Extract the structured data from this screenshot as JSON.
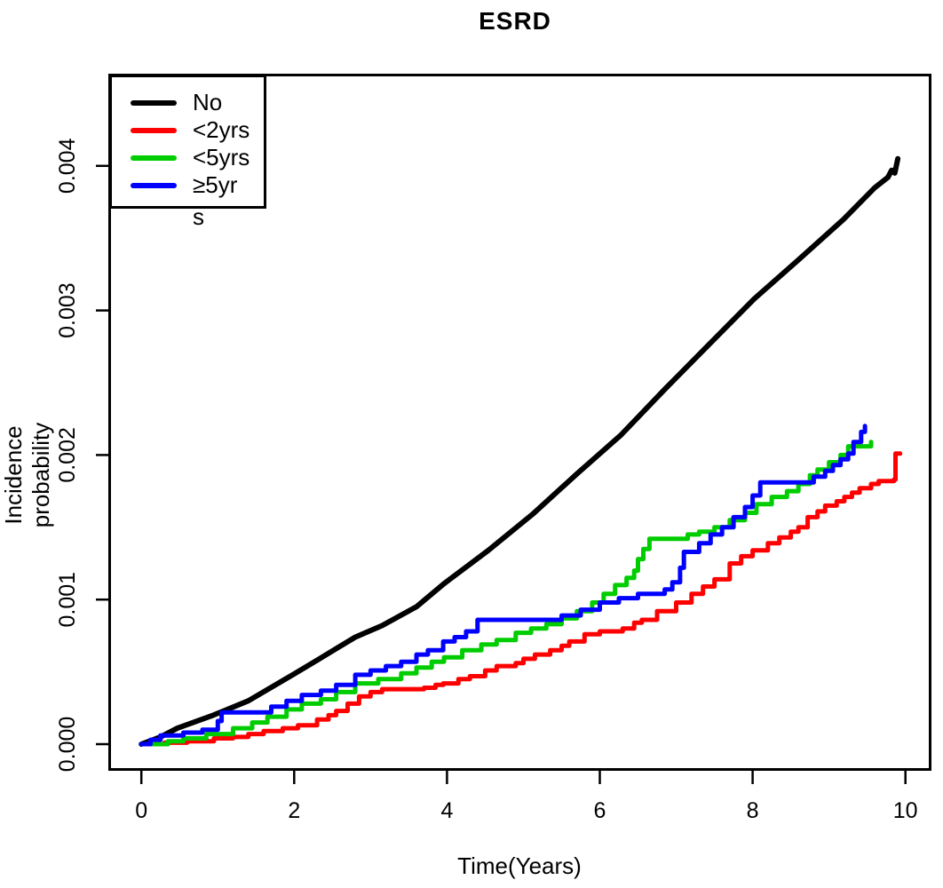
{
  "chart_data": {
    "type": "line",
    "title": "ESRD",
    "xlabel": "Time(Years)",
    "ylabel": "Incidence probability",
    "ylabel_lines": [
      "Incidence",
      "probability"
    ],
    "xlim": [
      0,
      10
    ],
    "ylim": [
      0,
      0.004
    ],
    "grid": false,
    "x_ticks": {
      "values": [
        0,
        2,
        4,
        6,
        8,
        10
      ],
      "labels": [
        "0",
        "2",
        "4",
        "6",
        "8",
        "10"
      ]
    },
    "y_ticks": {
      "values": [
        0,
        0.001,
        0.002,
        0.003,
        0.004
      ],
      "labels": [
        "0.000",
        "0.001",
        "0.002",
        "0.003",
        "0.004"
      ]
    },
    "legend": {
      "position": "top-left",
      "overflow_text": "s",
      "items": [
        {
          "id": "no",
          "label": "No",
          "display_label": "No",
          "color": "#000000"
        },
        {
          "id": "lt2yrs",
          "label": "<2yrs",
          "display_label": "<2yrs",
          "color": "#FF0000"
        },
        {
          "id": "lt5yrs",
          "label": "<5yrs",
          "display_label": "<5yrs",
          "color": "#00CD00"
        },
        {
          "id": "ge5yrs",
          "label": "≥5yrs",
          "display_label": "≥5yr",
          "color": "#0000FF"
        }
      ]
    },
    "series": [
      {
        "id": "no",
        "name": "No",
        "color": "#000000",
        "interp": "linear",
        "width": 6,
        "points": [
          [
            0.0,
            0.0
          ],
          [
            0.25,
            5e-05
          ],
          [
            0.47,
            0.00011
          ],
          [
            0.94,
            0.0002
          ],
          [
            1.4,
            0.0003
          ],
          [
            1.98,
            0.00048
          ],
          [
            2.33,
            0.00059
          ],
          [
            2.8,
            0.00074
          ],
          [
            3.15,
            0.00082
          ],
          [
            3.6,
            0.00095
          ],
          [
            3.96,
            0.00111
          ],
          [
            4.54,
            0.00134
          ],
          [
            5.12,
            0.00159
          ],
          [
            5.7,
            0.00187
          ],
          [
            6.28,
            0.00214
          ],
          [
            6.86,
            0.00246
          ],
          [
            7.44,
            0.00277
          ],
          [
            8.02,
            0.00308
          ],
          [
            8.6,
            0.00335
          ],
          [
            9.19,
            0.00363
          ],
          [
            9.6,
            0.00385
          ],
          [
            9.77,
            0.00392
          ],
          [
            9.82,
            0.00397
          ],
          [
            9.86,
            0.00395
          ],
          [
            9.9,
            0.00405
          ]
        ]
      },
      {
        "id": "lt2yrs",
        "name": "<2yrs",
        "color": "#FF0000",
        "interp": "step",
        "width": 5,
        "points": [
          [
            0.07,
            0.0
          ],
          [
            0.3,
            1e-05
          ],
          [
            0.6,
            2e-05
          ],
          [
            0.95,
            4e-05
          ],
          [
            1.2,
            5e-05
          ],
          [
            1.4,
            7e-05
          ],
          [
            1.6,
            9e-05
          ],
          [
            1.85,
            0.00011
          ],
          [
            2.05,
            0.00013
          ],
          [
            2.3,
            0.00017
          ],
          [
            2.45,
            0.0002
          ],
          [
            2.55,
            0.00023
          ],
          [
            2.7,
            0.00028
          ],
          [
            2.85,
            0.00033
          ],
          [
            3.0,
            0.00036
          ],
          [
            3.15,
            0.00038
          ],
          [
            3.7,
            0.00039
          ],
          [
            3.85,
            0.00041
          ],
          [
            3.95,
            0.00042
          ],
          [
            4.15,
            0.00045
          ],
          [
            4.3,
            0.00047
          ],
          [
            4.5,
            0.00051
          ],
          [
            4.65,
            0.00054
          ],
          [
            4.9,
            0.00056
          ],
          [
            5.0,
            0.00059
          ],
          [
            5.15,
            0.00062
          ],
          [
            5.35,
            0.00065
          ],
          [
            5.5,
            0.00068
          ],
          [
            5.6,
            0.00071
          ],
          [
            5.8,
            0.00076
          ],
          [
            6.0,
            0.00078
          ],
          [
            6.3,
            0.0008
          ],
          [
            6.45,
            0.00084
          ],
          [
            6.55,
            0.00086
          ],
          [
            6.75,
            0.00092
          ],
          [
            7.0,
            0.00098
          ],
          [
            7.2,
            0.00104
          ],
          [
            7.35,
            0.00109
          ],
          [
            7.5,
            0.00114
          ],
          [
            7.7,
            0.00125
          ],
          [
            7.85,
            0.0013
          ],
          [
            8.0,
            0.00134
          ],
          [
            8.2,
            0.00139
          ],
          [
            8.35,
            0.00143
          ],
          [
            8.5,
            0.00147
          ],
          [
            8.6,
            0.0015
          ],
          [
            8.72,
            0.00157
          ],
          [
            8.85,
            0.00161
          ],
          [
            8.95,
            0.00165
          ],
          [
            9.1,
            0.00168
          ],
          [
            9.2,
            0.00171
          ],
          [
            9.3,
            0.00174
          ],
          [
            9.4,
            0.00177
          ],
          [
            9.55,
            0.0018
          ],
          [
            9.65,
            0.00182
          ],
          [
            9.85,
            0.00183
          ],
          [
            9.87,
            0.00201
          ],
          [
            9.93,
            0.00201
          ]
        ]
      },
      {
        "id": "lt5yrs",
        "name": "<5yrs",
        "color": "#00CD00",
        "interp": "step",
        "width": 5,
        "points": [
          [
            0.1,
            0.0
          ],
          [
            0.35,
            2e-05
          ],
          [
            0.55,
            4e-05
          ],
          [
            0.85,
            7e-05
          ],
          [
            1.2,
            0.00011
          ],
          [
            1.45,
            0.00015
          ],
          [
            1.65,
            0.00019
          ],
          [
            1.9,
            0.00024
          ],
          [
            2.1,
            0.00028
          ],
          [
            2.35,
            0.00031
          ],
          [
            2.55,
            0.00036
          ],
          [
            2.8,
            0.00042
          ],
          [
            3.1,
            0.00045
          ],
          [
            3.4,
            0.00049
          ],
          [
            3.6,
            0.00053
          ],
          [
            3.8,
            0.00057
          ],
          [
            3.96,
            0.0006
          ],
          [
            4.2,
            0.00065
          ],
          [
            4.45,
            0.00069
          ],
          [
            4.65,
            0.00072
          ],
          [
            4.9,
            0.00077
          ],
          [
            5.1,
            0.0008
          ],
          [
            5.3,
            0.00083
          ],
          [
            5.5,
            0.00087
          ],
          [
            5.7,
            0.00092
          ],
          [
            5.9,
            0.00098
          ],
          [
            6.05,
            0.00104
          ],
          [
            6.2,
            0.0011
          ],
          [
            6.35,
            0.00115
          ],
          [
            6.45,
            0.0012
          ],
          [
            6.5,
            0.00128
          ],
          [
            6.57,
            0.00135
          ],
          [
            6.65,
            0.00142
          ],
          [
            7.0,
            0.00142
          ],
          [
            7.15,
            0.00145
          ],
          [
            7.3,
            0.00147
          ],
          [
            7.5,
            0.0015
          ],
          [
            7.7,
            0.00155
          ],
          [
            7.9,
            0.0016
          ],
          [
            8.05,
            0.00166
          ],
          [
            8.25,
            0.00171
          ],
          [
            8.45,
            0.00175
          ],
          [
            8.6,
            0.0018
          ],
          [
            8.75,
            0.00186
          ],
          [
            8.85,
            0.0019
          ],
          [
            9.0,
            0.00195
          ],
          [
            9.15,
            0.002
          ],
          [
            9.25,
            0.00206
          ],
          [
            9.5,
            0.00206
          ],
          [
            9.55,
            0.00209
          ]
        ]
      },
      {
        "id": "ge5yrs",
        "name": "≥5yrs",
        "color": "#0000FF",
        "interp": "step",
        "width": 5,
        "points": [
          [
            0.0,
            0.0
          ],
          [
            0.12,
            3e-05
          ],
          [
            0.25,
            6e-05
          ],
          [
            0.55,
            8e-05
          ],
          [
            0.8,
            0.0001
          ],
          [
            1.0,
            0.00016
          ],
          [
            1.05,
            0.00022
          ],
          [
            1.55,
            0.00022
          ],
          [
            1.7,
            0.00026
          ],
          [
            1.9,
            0.0003
          ],
          [
            2.1,
            0.00034
          ],
          [
            2.35,
            0.00037
          ],
          [
            2.55,
            0.00041
          ],
          [
            2.8,
            0.00048
          ],
          [
            3.0,
            0.00051
          ],
          [
            3.2,
            0.00054
          ],
          [
            3.4,
            0.00057
          ],
          [
            3.6,
            0.00062
          ],
          [
            3.75,
            0.00065
          ],
          [
            3.95,
            0.00071
          ],
          [
            4.1,
            0.00074
          ],
          [
            4.25,
            0.00078
          ],
          [
            4.4,
            0.00086
          ],
          [
            5.25,
            0.00086
          ],
          [
            5.5,
            0.00089
          ],
          [
            5.75,
            0.00093
          ],
          [
            6.0,
            0.00098
          ],
          [
            6.25,
            0.00101
          ],
          [
            6.5,
            0.00104
          ],
          [
            6.85,
            0.00107
          ],
          [
            6.95,
            0.00112
          ],
          [
            7.05,
            0.00122
          ],
          [
            7.1,
            0.00133
          ],
          [
            7.3,
            0.00139
          ],
          [
            7.45,
            0.00145
          ],
          [
            7.6,
            0.0015
          ],
          [
            7.75,
            0.00157
          ],
          [
            7.9,
            0.00164
          ],
          [
            8.0,
            0.00172
          ],
          [
            8.1,
            0.00181
          ],
          [
            8.75,
            0.00181
          ],
          [
            8.8,
            0.00185
          ],
          [
            8.95,
            0.00189
          ],
          [
            9.05,
            0.00193
          ],
          [
            9.15,
            0.00197
          ],
          [
            9.25,
            0.00201
          ],
          [
            9.32,
            0.00209
          ],
          [
            9.42,
            0.00216
          ],
          [
            9.47,
            0.0022
          ]
        ]
      }
    ]
  }
}
